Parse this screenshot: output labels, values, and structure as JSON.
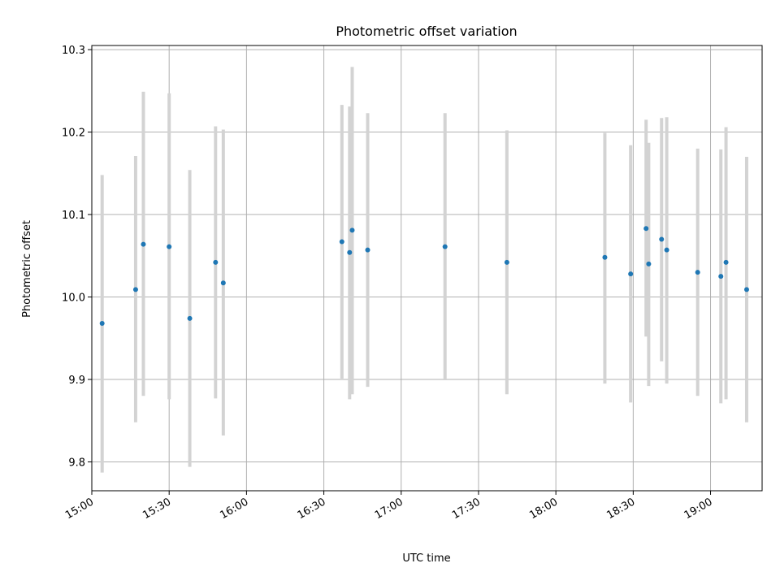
{
  "chart_data": {
    "type": "scatter",
    "title": "Photometric offset variation",
    "xlabel": "UTC time",
    "ylabel": "Photometric offset",
    "x_unit": "UTC time (HH:MM)",
    "xlim": [
      "15:00",
      "19:20"
    ],
    "ylim": [
      9.765,
      10.305
    ],
    "x_ticks": [
      "15:00",
      "15:30",
      "16:00",
      "16:30",
      "17:00",
      "17:30",
      "18:00",
      "18:30",
      "19:00"
    ],
    "y_ticks": [
      9.8,
      9.9,
      10.0,
      10.1,
      10.2,
      10.3
    ],
    "y_tick_labels": [
      "9.8",
      "9.9",
      "10.0",
      "10.1",
      "10.2",
      "10.3"
    ],
    "grid": true,
    "legend": false,
    "colors": {
      "points": "#1f77b4",
      "errorbars": "#d3d3d3",
      "grid": "#b0b0b0"
    },
    "series": [
      {
        "points": [
          {
            "x": "15:04",
            "y": 9.968,
            "lo": 9.787,
            "hi": 10.148
          },
          {
            "x": "15:17",
            "y": 10.009,
            "lo": 9.848,
            "hi": 10.171
          },
          {
            "x": "15:20",
            "y": 10.064,
            "lo": 9.88,
            "hi": 10.249
          },
          {
            "x": "15:30",
            "y": 10.061,
            "lo": 9.876,
            "hi": 10.247
          },
          {
            "x": "15:38",
            "y": 9.974,
            "lo": 9.794,
            "hi": 10.154
          },
          {
            "x": "15:48",
            "y": 10.042,
            "lo": 9.877,
            "hi": 10.207
          },
          {
            "x": "15:51",
            "y": 10.017,
            "lo": 9.832,
            "hi": 10.203
          },
          {
            "x": "16:37",
            "y": 10.067,
            "lo": 9.901,
            "hi": 10.233
          },
          {
            "x": "16:40",
            "y": 10.054,
            "lo": 9.876,
            "hi": 10.231
          },
          {
            "x": "16:41",
            "y": 10.081,
            "lo": 9.882,
            "hi": 10.279
          },
          {
            "x": "16:47",
            "y": 10.057,
            "lo": 9.891,
            "hi": 10.223
          },
          {
            "x": "17:17",
            "y": 10.061,
            "lo": 9.899,
            "hi": 10.223
          },
          {
            "x": "17:41",
            "y": 10.042,
            "lo": 9.882,
            "hi": 10.202
          },
          {
            "x": "18:19",
            "y": 10.048,
            "lo": 9.895,
            "hi": 10.199
          },
          {
            "x": "18:29",
            "y": 10.028,
            "lo": 9.872,
            "hi": 10.184
          },
          {
            "x": "18:35",
            "y": 10.083,
            "lo": 9.952,
            "hi": 10.215
          },
          {
            "x": "18:36",
            "y": 10.04,
            "lo": 9.892,
            "hi": 10.187
          },
          {
            "x": "18:41",
            "y": 10.07,
            "lo": 9.922,
            "hi": 10.217
          },
          {
            "x": "18:43",
            "y": 10.057,
            "lo": 9.895,
            "hi": 10.218
          },
          {
            "x": "18:55",
            "y": 10.03,
            "lo": 9.88,
            "hi": 10.18
          },
          {
            "x": "19:04",
            "y": 10.025,
            "lo": 9.871,
            "hi": 10.179
          },
          {
            "x": "19:06",
            "y": 10.042,
            "lo": 9.876,
            "hi": 10.206
          },
          {
            "x": "19:14",
            "y": 10.009,
            "lo": 9.848,
            "hi": 10.17
          }
        ]
      }
    ]
  }
}
